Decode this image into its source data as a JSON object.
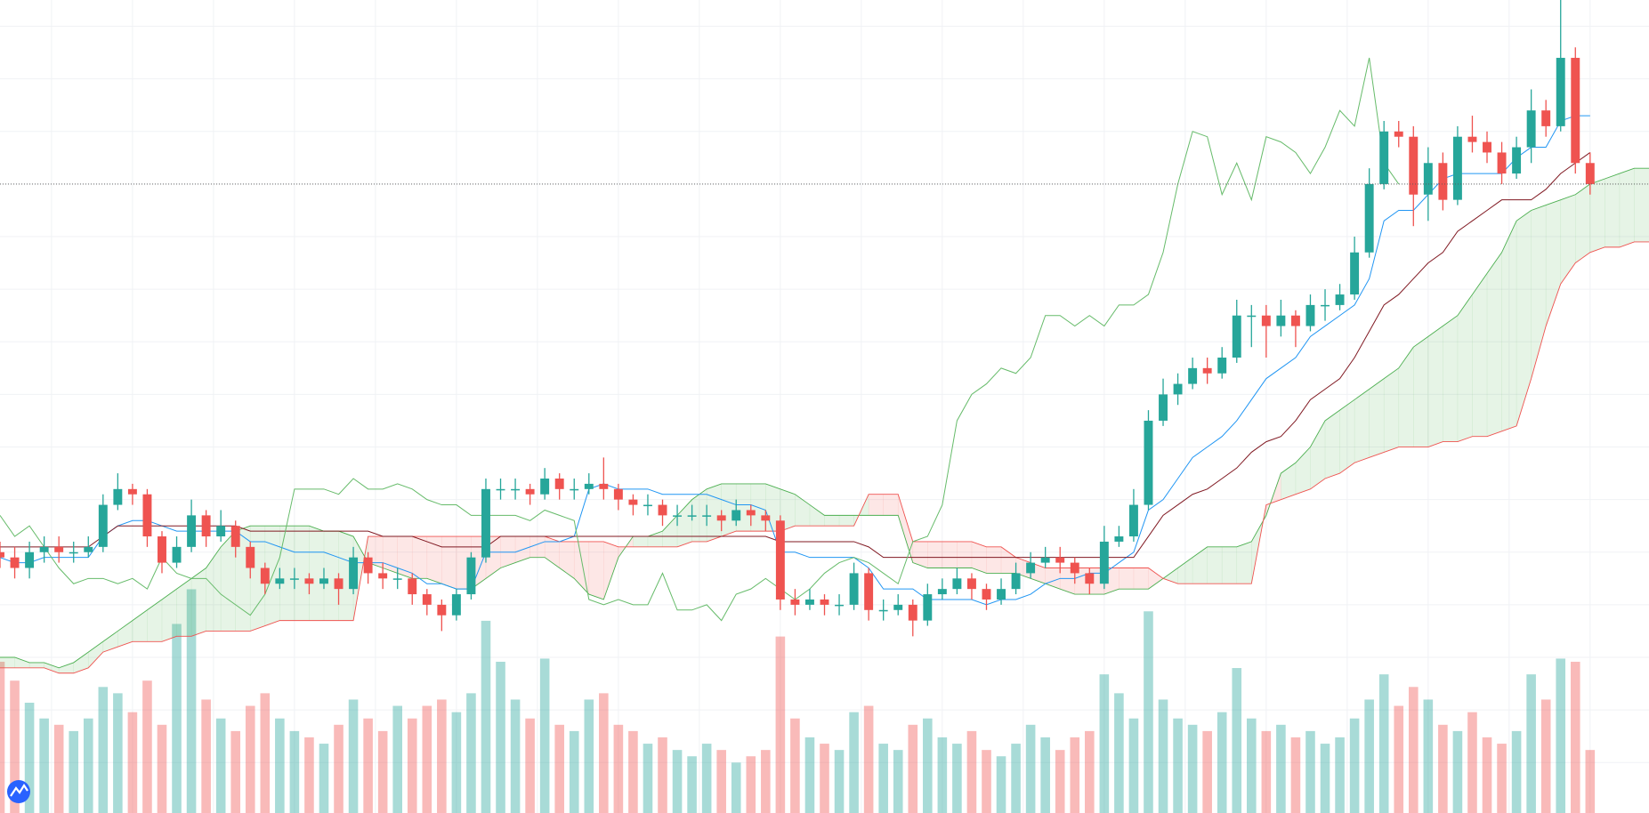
{
  "chart_data": {
    "type": "candlestick",
    "xlim": [
      0,
      112
    ],
    "ylim": [
      -26.6,
      128
    ],
    "xticks": [
      3.5,
      9,
      14.5,
      20,
      25.5,
      31,
      36.5,
      42,
      47.5,
      53,
      58.5,
      64,
      69.5,
      75,
      80.5,
      86,
      91.5,
      97,
      102.5,
      108
    ],
    "yticks": [
      -17,
      -7,
      3,
      13,
      23,
      33,
      43,
      53,
      63,
      73,
      83,
      93,
      103,
      113,
      123
    ],
    "grid": true,
    "grid_color": "#f0f2f5",
    "up_color": "#26a69a",
    "down_color": "#ef5350",
    "last_price_line": true,
    "open": [
      23,
      22,
      20,
      23,
      24,
      23,
      23,
      24,
      32,
      35,
      34,
      26,
      21,
      24,
      30,
      26,
      28,
      24,
      20,
      17,
      18,
      18,
      17,
      18,
      16,
      22,
      19,
      18,
      18,
      15,
      13,
      11,
      15,
      22,
      35,
      35,
      35,
      34,
      37,
      35,
      35,
      36,
      35,
      33,
      32,
      32,
      30,
      30,
      30,
      30,
      29,
      31,
      30,
      29,
      14,
      13,
      14,
      13,
      13,
      19,
      12,
      12,
      13,
      10,
      15,
      16,
      18,
      16,
      14,
      16,
      19,
      21,
      22,
      21,
      19,
      17,
      25,
      26,
      32,
      48,
      53,
      55,
      58,
      57,
      60,
      68,
      68,
      66,
      68,
      66,
      70,
      70,
      72,
      80,
      93,
      103,
      102,
      91,
      97,
      90,
      102,
      101,
      99,
      95,
      100,
      107,
      104,
      117,
      97
    ],
    "high": [
      25,
      24,
      25,
      26,
      26,
      25,
      26,
      34,
      38,
      36,
      35,
      27,
      26,
      33,
      31,
      31,
      29,
      25,
      21,
      20,
      20,
      19,
      20,
      19,
      24,
      23,
      21,
      20,
      19,
      16,
      14,
      16,
      23,
      37,
      37,
      37,
      36,
      39,
      38,
      37,
      38,
      41,
      36,
      34,
      34,
      33,
      32,
      32,
      32,
      31,
      33,
      32,
      31,
      30,
      16,
      16,
      15,
      15,
      21,
      20,
      14,
      15,
      14,
      17,
      18,
      20,
      19,
      17,
      18,
      21,
      23,
      24,
      24,
      22,
      20,
      28,
      28,
      35,
      50,
      56,
      57,
      60,
      60,
      62,
      71,
      70,
      70,
      71,
      69,
      72,
      73,
      74,
      83,
      96,
      105,
      105,
      104,
      100,
      99,
      104,
      106,
      103,
      101,
      102,
      111,
      109,
      128,
      119,
      99
    ],
    "low": [
      20,
      18,
      18,
      21,
      21,
      21,
      22,
      23,
      31,
      32,
      24,
      19,
      20,
      23,
      24,
      25,
      22,
      18,
      15,
      16,
      16,
      15,
      16,
      13,
      15,
      17,
      16,
      16,
      13,
      11,
      8,
      10,
      14,
      21,
      33,
      33,
      32,
      33,
      33,
      33,
      34,
      33,
      31,
      30,
      30,
      28,
      28,
      29,
      28,
      27,
      28,
      28,
      27,
      12,
      11,
      12,
      11,
      11,
      12,
      10,
      10,
      11,
      7,
      9,
      14,
      15,
      14,
      12,
      13,
      15,
      18,
      20,
      19,
      17,
      15,
      16,
      24,
      25,
      31,
      47,
      51,
      54,
      55,
      56,
      59,
      62,
      60,
      64,
      62,
      65,
      67,
      69,
      71,
      79,
      92,
      100,
      85,
      86,
      88,
      89,
      99,
      97,
      93,
      94,
      97,
      102,
      103,
      95,
      91
    ],
    "close": [
      22,
      20,
      23,
      24,
      23,
      23,
      24,
      32,
      35,
      34,
      26,
      21,
      24,
      30,
      26,
      28,
      24,
      20,
      17,
      18,
      18,
      17,
      18,
      16,
      22,
      19,
      18,
      18,
      15,
      13,
      11,
      15,
      22,
      35,
      35,
      35,
      34,
      37,
      35,
      35,
      36,
      35,
      33,
      32,
      32,
      30,
      30,
      30,
      30,
      29,
      31,
      30,
      29,
      14,
      13,
      14,
      13,
      13,
      19,
      12,
      12,
      13,
      10,
      15,
      16,
      18,
      16,
      14,
      16,
      19,
      21,
      22,
      21,
      19,
      17,
      25,
      26,
      32,
      48,
      53,
      55,
      58,
      57,
      60,
      68,
      68,
      66,
      68,
      66,
      70,
      70,
      72,
      80,
      93,
      103,
      102,
      91,
      97,
      90,
      102,
      101,
      99,
      95,
      100,
      107,
      104,
      117,
      97,
      93
    ],
    "volume": {
      "ylim": [
        0,
        258
      ],
      "opacity": 0.4,
      "values": [
        48,
        42,
        35,
        30,
        28,
        26,
        30,
        40,
        38,
        32,
        42,
        28,
        60,
        71,
        36,
        30,
        26,
        34,
        38,
        30,
        26,
        24,
        22,
        28,
        36,
        30,
        26,
        34,
        30,
        34,
        36,
        32,
        38,
        61,
        48,
        36,
        30,
        49,
        28,
        26,
        36,
        38,
        28,
        26,
        22,
        24,
        20,
        18,
        22,
        20,
        16,
        18,
        20,
        56,
        30,
        24,
        22,
        20,
        32,
        34,
        22,
        20,
        28,
        30,
        24,
        22,
        26,
        20,
        18,
        22,
        28,
        24,
        20,
        24,
        26,
        44,
        38,
        30,
        64,
        36,
        30,
        28,
        26,
        32,
        46,
        30,
        26,
        28,
        24,
        26,
        22,
        24,
        30,
        36,
        44,
        34,
        40,
        36,
        28,
        26,
        32,
        24,
        22,
        26,
        44,
        36,
        49,
        48,
        20
      ]
    },
    "lines": [
      {
        "color": "#2196f3",
        "values": [
          22,
          21,
          21,
          22,
          22,
          22,
          22,
          26,
          28,
          29,
          29,
          28,
          27,
          27,
          27,
          27,
          27,
          25,
          25,
          24,
          23,
          23,
          23,
          22,
          21,
          21,
          21,
          20,
          19,
          17,
          17,
          16,
          16,
          23,
          23,
          23,
          24,
          25,
          25,
          26,
          35,
          36,
          35,
          35,
          35,
          34,
          34,
          34,
          34,
          33,
          32,
          32,
          31,
          23,
          23,
          22,
          22,
          22,
          22,
          20,
          16,
          16,
          16,
          14,
          14,
          14,
          14,
          13,
          14,
          14,
          15,
          17,
          18,
          18,
          19,
          19,
          21,
          23,
          31,
          33,
          37,
          41,
          43,
          45,
          48,
          52,
          56,
          58,
          60,
          64,
          66,
          68,
          70,
          75,
          86,
          88,
          88,
          91,
          94,
          95,
          95,
          95,
          95,
          98,
          100,
          100,
          105,
          106,
          106
        ]
      },
      {
        "color": "#801922",
        "values": [
          24,
          24,
          24,
          24,
          24,
          24,
          24,
          26,
          28,
          28,
          28,
          28,
          28,
          28,
          28,
          28,
          28,
          27,
          27,
          27,
          27,
          27,
          27,
          27,
          27,
          27,
          26,
          26,
          26,
          25,
          24,
          24,
          24,
          24,
          26,
          26,
          26,
          26,
          26,
          26,
          26,
          26,
          26,
          26,
          26,
          26,
          26,
          26,
          26,
          26,
          26,
          26,
          26,
          25,
          25,
          25,
          25,
          25,
          25,
          24,
          22,
          22,
          22,
          22,
          22,
          22,
          22,
          22,
          22,
          22,
          22,
          22,
          22,
          22,
          22,
          22,
          22,
          22,
          26,
          30,
          32,
          34,
          35,
          37,
          39,
          42,
          44,
          45,
          48,
          52,
          54,
          56,
          60,
          65,
          70,
          72,
          75,
          78,
          80,
          84,
          86,
          88,
          90,
          90,
          90,
          92,
          95,
          97,
          99
        ]
      },
      {
        "color": "#66bb6a",
        "values": [
          30,
          26,
          28,
          24,
          20,
          17,
          18,
          18,
          17,
          18,
          16,
          22,
          19,
          18,
          18,
          15,
          13,
          11,
          15,
          22,
          35,
          35,
          35,
          34,
          37,
          35,
          35,
          36,
          35,
          33,
          32,
          32,
          30,
          30,
          30,
          30,
          29,
          31,
          30,
          29,
          14,
          13,
          14,
          13,
          13,
          19,
          12,
          12,
          13,
          10,
          15,
          16,
          18,
          16,
          14,
          16,
          19,
          21,
          22,
          21,
          19,
          17,
          25,
          26,
          32,
          48,
          53,
          55,
          58,
          57,
          60,
          68,
          68,
          66,
          68,
          66,
          70,
          70,
          72,
          80,
          93,
          103,
          102,
          91,
          97,
          90,
          102,
          101,
          99,
          95,
          100,
          107,
          104,
          117,
          97,
          93,
          null,
          null,
          null,
          null,
          null,
          null,
          null,
          null,
          null,
          null,
          null,
          null,
          null
        ]
      }
    ],
    "cloud": {
      "up_fill": "rgba(76,175,80,0.14)",
      "down_fill": "rgba(239,83,80,0.14)",
      "a": {
        "color": "#4caf50",
        "values": [
          3,
          3,
          2,
          2,
          1,
          2,
          4,
          6,
          8,
          10,
          12,
          14,
          16,
          18,
          20,
          24,
          27,
          28,
          28,
          28,
          28,
          28,
          27,
          27,
          26,
          21,
          20,
          19,
          18,
          18,
          17,
          16,
          16,
          18,
          20,
          21,
          22,
          22,
          20,
          18,
          15,
          14,
          22,
          26,
          26,
          27,
          30,
          33,
          35,
          36,
          36,
          36,
          36,
          35,
          34,
          32,
          30,
          30,
          30,
          30,
          30,
          30,
          21,
          20,
          20,
          20,
          20,
          19,
          19,
          19,
          18,
          17,
          16,
          15,
          15,
          15,
          16,
          16,
          16,
          18,
          20,
          22,
          24,
          24,
          24,
          25,
          30,
          38,
          40,
          43,
          48,
          50,
          52,
          54,
          56,
          58,
          62,
          64,
          66,
          68,
          72,
          76,
          80,
          86,
          88,
          89,
          90,
          91,
          93,
          94,
          95,
          96,
          96
        ]
      },
      "b": {
        "color": "#ef5350",
        "values": [
          1,
          1,
          1,
          1,
          0,
          0,
          1,
          4,
          5,
          6,
          6,
          6,
          7,
          7,
          8,
          8,
          8,
          8,
          9,
          10,
          10,
          10,
          10,
          10,
          10,
          26,
          26,
          26,
          26,
          26,
          26,
          26,
          26,
          26,
          26,
          26,
          26,
          26,
          25,
          25,
          25,
          25,
          24,
          24,
          24,
          24,
          24,
          25,
          25,
          26,
          27,
          27,
          27,
          27,
          28,
          28,
          28,
          28,
          28,
          34,
          34,
          34,
          25,
          25,
          25,
          25,
          25,
          24,
          24,
          22,
          21,
          20,
          20,
          20,
          20,
          20,
          20,
          20,
          20,
          18,
          17,
          17,
          17,
          17,
          17,
          17,
          32,
          33,
          34,
          35,
          37,
          38,
          40,
          41,
          42,
          43,
          43,
          43,
          44,
          44,
          45,
          45,
          46,
          47,
          56,
          66,
          74,
          78,
          80,
          81,
          81,
          82,
          82
        ]
      }
    }
  }
}
